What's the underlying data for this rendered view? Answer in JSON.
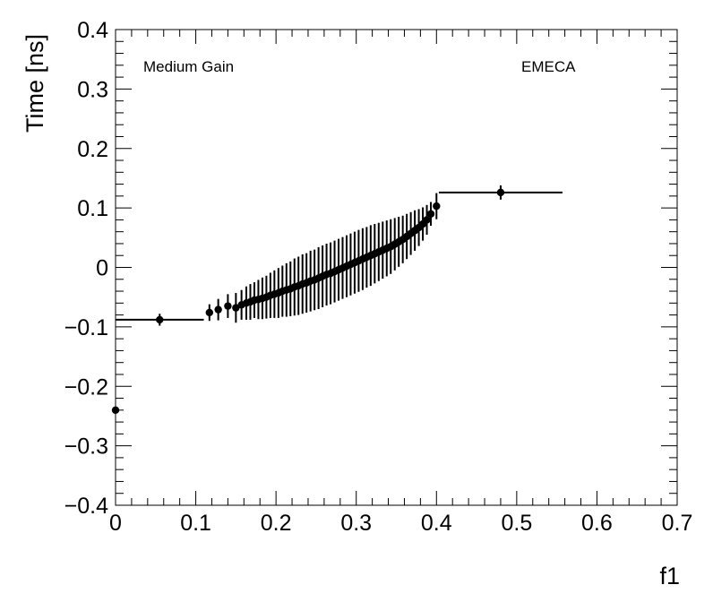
{
  "chart_data": {
    "type": "scatter",
    "xlabel": "f1",
    "ylabel": "Time [ns]",
    "xlim": [
      0,
      0.7
    ],
    "ylim": [
      -0.4,
      0.4
    ],
    "xticks": [
      "0",
      "0.1",
      "0.2",
      "0.3",
      "0.4",
      "0.5",
      "0.6",
      "0.7"
    ],
    "yticks": [
      "−0.4",
      "−0.3",
      "−0.2",
      "−0.1",
      "0",
      "0.1",
      "0.2",
      "0.3",
      "0.4"
    ],
    "grid": false,
    "annotations": [
      "Medium Gain",
      "EMECA"
    ],
    "series": [
      {
        "points": [
          {
            "x": 0.0,
            "y": -0.24,
            "xerr": 0.0,
            "yerr": 0.0
          },
          {
            "x": 0.055,
            "y": -0.088,
            "xerr": 0.055,
            "yerr": 0.01
          },
          {
            "x": 0.117,
            "y": -0.076,
            "xerr": 0.0,
            "yerr": 0.014
          },
          {
            "x": 0.128,
            "y": -0.071,
            "xerr": 0.0,
            "yerr": 0.018
          },
          {
            "x": 0.14,
            "y": -0.065,
            "xerr": 0.0,
            "yerr": 0.02
          },
          {
            "x": 0.15,
            "y": -0.068,
            "xerr": 0.0,
            "yerr": 0.025
          },
          {
            "x": 0.157,
            "y": -0.063,
            "xerr": 0.0,
            "yerr": 0.025
          },
          {
            "x": 0.163,
            "y": -0.06,
            "xerr": 0.0,
            "yerr": 0.028
          },
          {
            "x": 0.168,
            "y": -0.058,
            "xerr": 0.0,
            "yerr": 0.03
          },
          {
            "x": 0.173,
            "y": -0.055,
            "xerr": 0.0,
            "yerr": 0.03
          },
          {
            "x": 0.178,
            "y": -0.054,
            "xerr": 0.0,
            "yerr": 0.033
          },
          {
            "x": 0.183,
            "y": -0.052,
            "xerr": 0.0,
            "yerr": 0.035
          },
          {
            "x": 0.188,
            "y": -0.05,
            "xerr": 0.0,
            "yerr": 0.036
          },
          {
            "x": 0.193,
            "y": -0.047,
            "xerr": 0.0,
            "yerr": 0.038
          },
          {
            "x": 0.198,
            "y": -0.045,
            "xerr": 0.0,
            "yerr": 0.04
          },
          {
            "x": 0.203,
            "y": -0.043,
            "xerr": 0.0,
            "yerr": 0.042
          },
          {
            "x": 0.208,
            "y": -0.04,
            "xerr": 0.0,
            "yerr": 0.043
          },
          {
            "x": 0.213,
            "y": -0.038,
            "xerr": 0.0,
            "yerr": 0.045
          },
          {
            "x": 0.218,
            "y": -0.036,
            "xerr": 0.0,
            "yerr": 0.046
          },
          {
            "x": 0.223,
            "y": -0.033,
            "xerr": 0.0,
            "yerr": 0.048
          },
          {
            "x": 0.228,
            "y": -0.031,
            "xerr": 0.0,
            "yerr": 0.049
          },
          {
            "x": 0.233,
            "y": -0.028,
            "xerr": 0.0,
            "yerr": 0.05
          },
          {
            "x": 0.238,
            "y": -0.026,
            "xerr": 0.0,
            "yerr": 0.05
          },
          {
            "x": 0.243,
            "y": -0.023,
            "xerr": 0.0,
            "yerr": 0.051
          },
          {
            "x": 0.248,
            "y": -0.021,
            "xerr": 0.0,
            "yerr": 0.051
          },
          {
            "x": 0.253,
            "y": -0.018,
            "xerr": 0.0,
            "yerr": 0.052
          },
          {
            "x": 0.258,
            "y": -0.015,
            "xerr": 0.0,
            "yerr": 0.052
          },
          {
            "x": 0.263,
            "y": -0.012,
            "xerr": 0.0,
            "yerr": 0.052
          },
          {
            "x": 0.268,
            "y": -0.01,
            "xerr": 0.0,
            "yerr": 0.052
          },
          {
            "x": 0.273,
            "y": -0.007,
            "xerr": 0.0,
            "yerr": 0.052
          },
          {
            "x": 0.278,
            "y": -0.004,
            "xerr": 0.0,
            "yerr": 0.052
          },
          {
            "x": 0.283,
            "y": -0.001,
            "xerr": 0.0,
            "yerr": 0.052
          },
          {
            "x": 0.288,
            "y": 0.002,
            "xerr": 0.0,
            "yerr": 0.052
          },
          {
            "x": 0.293,
            "y": 0.005,
            "xerr": 0.0,
            "yerr": 0.052
          },
          {
            "x": 0.298,
            "y": 0.008,
            "xerr": 0.0,
            "yerr": 0.052
          },
          {
            "x": 0.303,
            "y": 0.011,
            "xerr": 0.0,
            "yerr": 0.052
          },
          {
            "x": 0.308,
            "y": 0.014,
            "xerr": 0.0,
            "yerr": 0.052
          },
          {
            "x": 0.313,
            "y": 0.017,
            "xerr": 0.0,
            "yerr": 0.051
          },
          {
            "x": 0.318,
            "y": 0.02,
            "xerr": 0.0,
            "yerr": 0.051
          },
          {
            "x": 0.323,
            "y": 0.023,
            "xerr": 0.0,
            "yerr": 0.05
          },
          {
            "x": 0.328,
            "y": 0.026,
            "xerr": 0.0,
            "yerr": 0.049
          },
          {
            "x": 0.333,
            "y": 0.029,
            "xerr": 0.0,
            "yerr": 0.048
          },
          {
            "x": 0.338,
            "y": 0.032,
            "xerr": 0.0,
            "yerr": 0.047
          },
          {
            "x": 0.343,
            "y": 0.035,
            "xerr": 0.0,
            "yerr": 0.046
          },
          {
            "x": 0.348,
            "y": 0.039,
            "xerr": 0.0,
            "yerr": 0.044
          },
          {
            "x": 0.353,
            "y": 0.043,
            "xerr": 0.0,
            "yerr": 0.042
          },
          {
            "x": 0.358,
            "y": 0.047,
            "xerr": 0.0,
            "yerr": 0.04
          },
          {
            "x": 0.363,
            "y": 0.052,
            "xerr": 0.0,
            "yerr": 0.038
          },
          {
            "x": 0.368,
            "y": 0.057,
            "xerr": 0.0,
            "yerr": 0.036
          },
          {
            "x": 0.373,
            "y": 0.062,
            "xerr": 0.0,
            "yerr": 0.034
          },
          {
            "x": 0.378,
            "y": 0.067,
            "xerr": 0.0,
            "yerr": 0.031
          },
          {
            "x": 0.383,
            "y": 0.073,
            "xerr": 0.0,
            "yerr": 0.028
          },
          {
            "x": 0.388,
            "y": 0.08,
            "xerr": 0.0,
            "yerr": 0.025
          },
          {
            "x": 0.393,
            "y": 0.09,
            "xerr": 0.0,
            "yerr": 0.02
          },
          {
            "x": 0.4,
            "y": 0.103,
            "xerr": 0.0,
            "yerr": 0.022
          },
          {
            "x": 0.48,
            "y": 0.126,
            "xerr": 0.077,
            "yerr": 0.012
          }
        ]
      }
    ]
  }
}
